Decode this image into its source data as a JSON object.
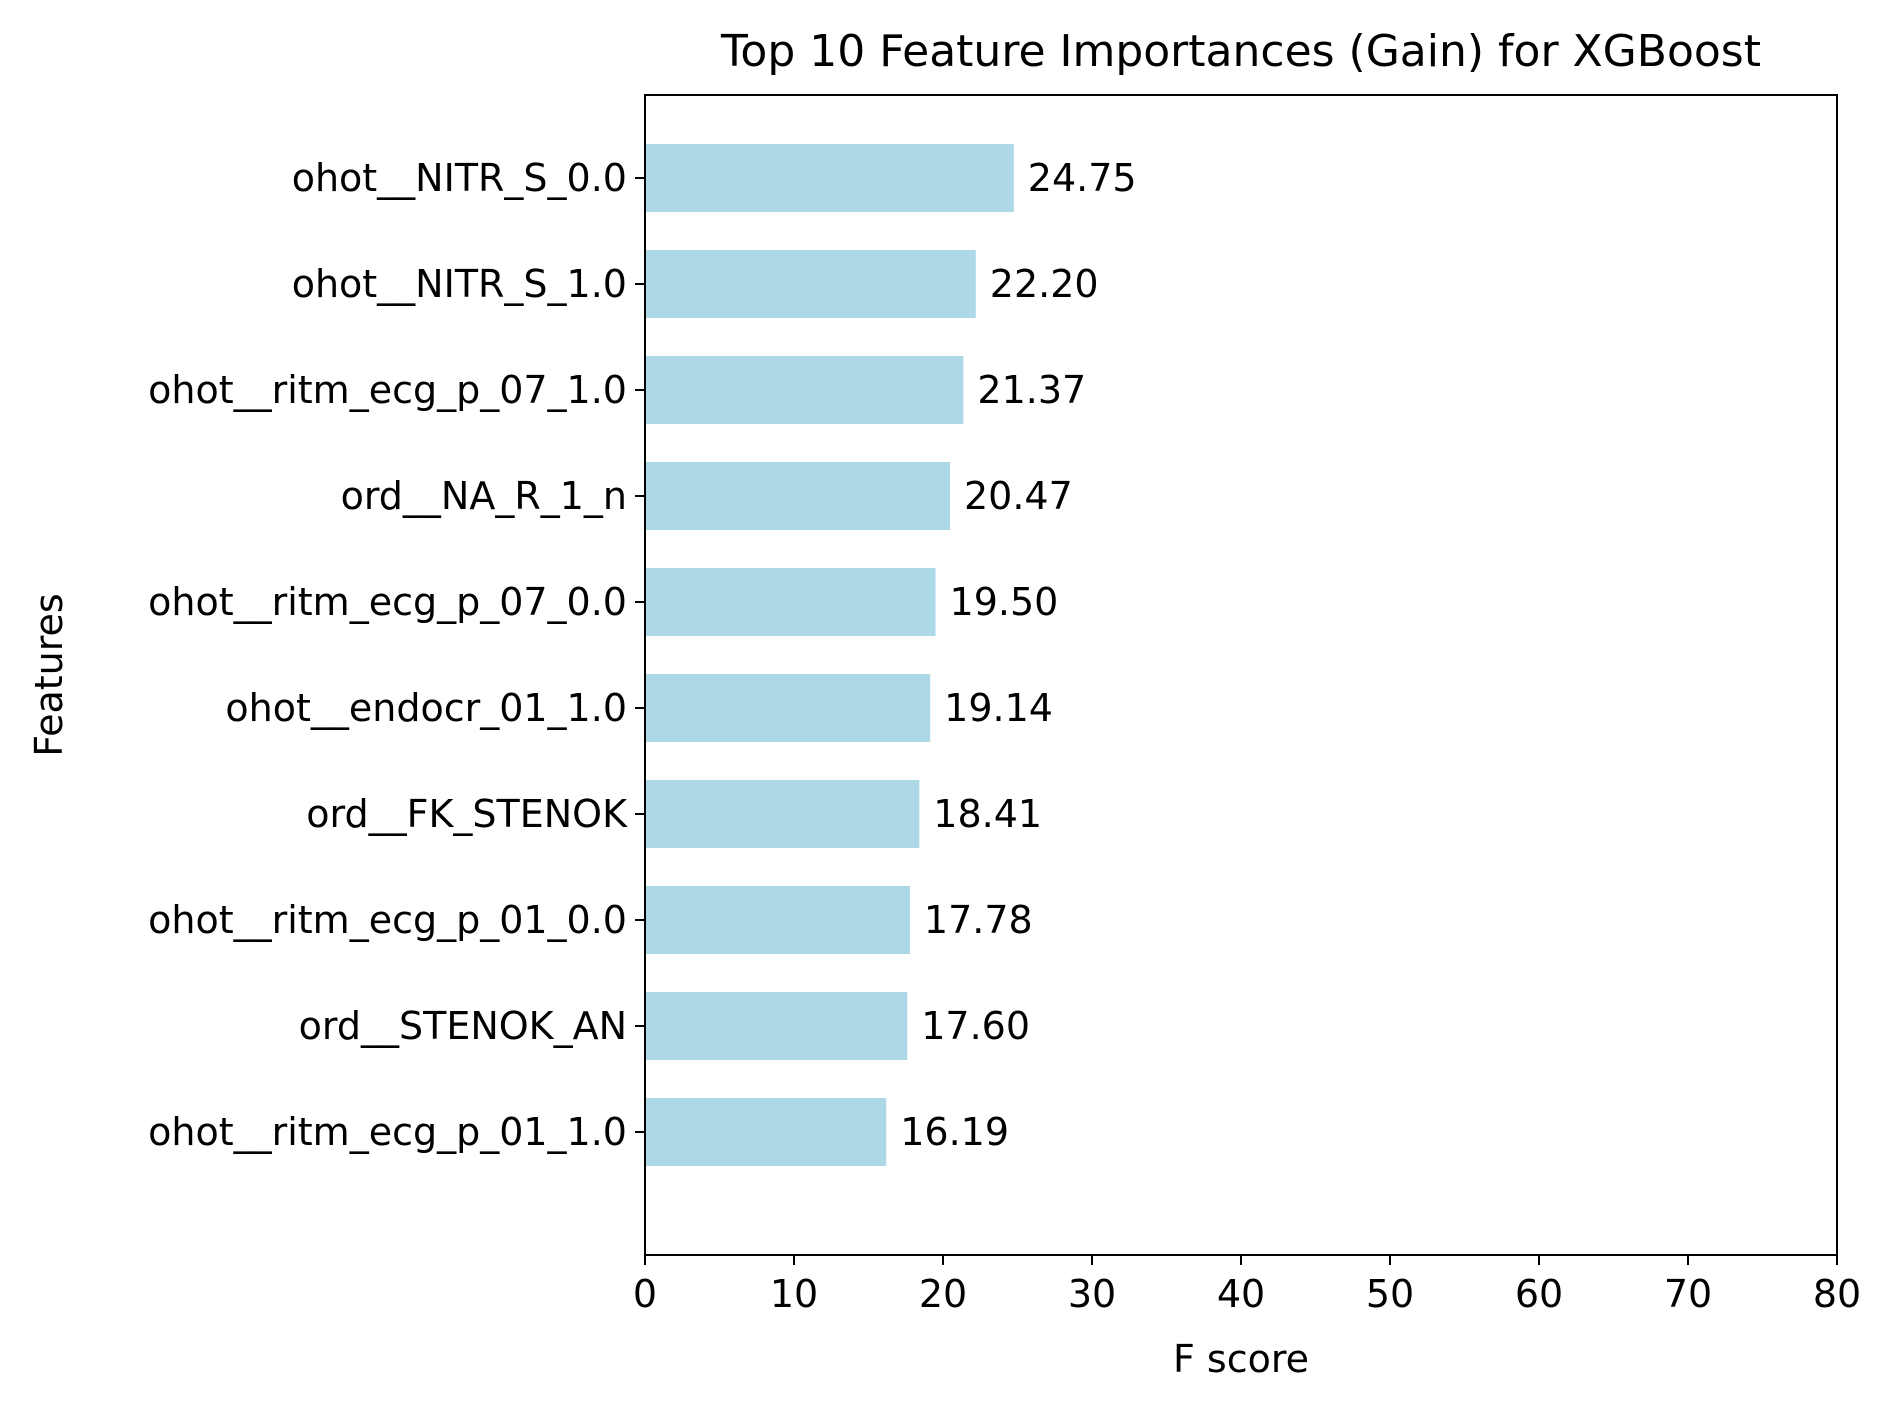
{
  "chart_data": {
    "type": "bar",
    "orientation": "horizontal",
    "title": "Top 10 Feature Importances (Gain) for XGBoost",
    "xlabel": "F score",
    "ylabel": "Features",
    "xlim": [
      0,
      80
    ],
    "xticks": [
      0,
      10,
      20,
      30,
      40,
      50,
      60,
      70,
      80
    ],
    "grid": false,
    "legend": "none",
    "bar_color": "#add8e6",
    "categories": [
      "ohot__NITR_S_0.0",
      "ohot__NITR_S_1.0",
      "ohot__ritm_ecg_p_07_1.0",
      "ord__NA_R_1_n",
      "ohot__ritm_ecg_p_07_0.0",
      "ohot__endocr_01_1.0",
      "ord__FK_STENOK",
      "ohot__ritm_ecg_p_01_0.0",
      "ord__STENOK_AN",
      "ohot__ritm_ecg_p_01_1.0"
    ],
    "values": [
      24.75,
      22.2,
      21.37,
      20.47,
      19.5,
      19.14,
      18.41,
      17.78,
      17.6,
      16.19
    ],
    "value_labels": [
      "24.75",
      "22.20",
      "21.37",
      "20.47",
      "19.50",
      "19.14",
      "18.41",
      "17.78",
      "17.60",
      "16.19"
    ]
  }
}
